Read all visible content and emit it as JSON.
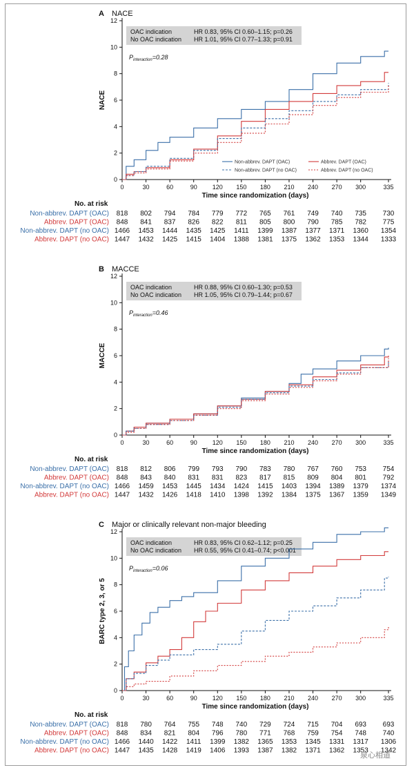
{
  "colors": {
    "blue": "#3a6fa8",
    "red": "#d23a3a"
  },
  "xlabel": "Time since randomization (days)",
  "x_ticks": [
    0,
    30,
    60,
    90,
    120,
    150,
    180,
    210,
    240,
    270,
    300,
    335
  ],
  "y_ticks": [
    0,
    2,
    4,
    6,
    8,
    10,
    12
  ],
  "risk_title": "No. at risk",
  "risk_labels": [
    "Non-abbrev. DAPT (OAC)",
    "Abbrev. DAPT (OAC)",
    "Non-abbrev. DAPT (no OAC)",
    "Abbrev. DAPT (no OAC)"
  ],
  "legend_labels": [
    "Non-abbrev. DAPT (OAC)",
    "Abbrev. DAPT (OAC)",
    "Non-abbrev. DAPT (no OAC)",
    "Abbrev. DAPT (no OAC)"
  ],
  "box_labels": [
    "OAC indication",
    "No OAC indication"
  ],
  "pint_prefix": "P",
  "pint_sub": "interaction",
  "watermark": "泉心相道",
  "panels": [
    {
      "letter": "A",
      "title": "NACE",
      "ylabel": "NACE",
      "box_stats": [
        "HR 0.83, 95% CI 0.60–1.15; p=0.26",
        "HR 1.01, 95% CI 0.77–1.33; p=0.91"
      ],
      "pint": "=0.28",
      "show_legend": true,
      "risk": [
        [
          818,
          802,
          794,
          784,
          779,
          772,
          765,
          761,
          749,
          740,
          735,
          730
        ],
        [
          848,
          841,
          837,
          826,
          822,
          811,
          805,
          800,
          790,
          785,
          782,
          775
        ],
        [
          1466,
          1453,
          1444,
          1435,
          1425,
          1411,
          1399,
          1387,
          1377,
          1371,
          1360,
          1354
        ],
        [
          1447,
          1432,
          1425,
          1415,
          1404,
          1388,
          1381,
          1375,
          1362,
          1353,
          1344,
          1333
        ]
      ],
      "chart_data": {
        "type": "line",
        "xlim": [
          0,
          335
        ],
        "ylim": [
          0,
          12
        ],
        "series": [
          {
            "name": "Non-abbrev. DAPT (OAC)",
            "x": [
              0,
              5,
              15,
              30,
              45,
              60,
              90,
              120,
              150,
              180,
              210,
              240,
              270,
              300,
              330,
              335
            ],
            "y": [
              0,
              1.0,
              1.5,
              2.2,
              2.8,
              3.2,
              3.9,
              4.6,
              5.3,
              5.9,
              6.8,
              8.0,
              8.8,
              9.3,
              9.7,
              9.7
            ]
          },
          {
            "name": "Abbrev. DAPT (OAC)",
            "x": [
              0,
              5,
              15,
              30,
              60,
              90,
              120,
              150,
              180,
              210,
              240,
              270,
              300,
              330,
              335
            ],
            "y": [
              0,
              0.4,
              0.6,
              0.9,
              1.5,
              2.3,
              3.3,
              4.4,
              5.3,
              5.9,
              6.5,
              7.1,
              7.4,
              8.1,
              8.1
            ]
          },
          {
            "name": "Non-abbrev. DAPT (no OAC)",
            "x": [
              0,
              5,
              15,
              30,
              60,
              90,
              120,
              150,
              180,
              210,
              240,
              270,
              300,
              335
            ],
            "y": [
              0,
              0.3,
              0.6,
              1.0,
              1.6,
              2.2,
              3.1,
              3.9,
              4.6,
              5.2,
              5.9,
              6.4,
              6.8,
              7.3
            ]
          },
          {
            "name": "Abbrev. DAPT (no OAC)",
            "x": [
              0,
              5,
              15,
              30,
              60,
              90,
              120,
              150,
              180,
              210,
              240,
              270,
              300,
              335
            ],
            "y": [
              0,
              0.3,
              0.5,
              0.8,
              1.4,
              2.0,
              2.8,
              3.5,
              4.2,
              4.9,
              5.6,
              6.2,
              6.6,
              7.2
            ]
          }
        ]
      }
    },
    {
      "letter": "B",
      "title": "MACCE",
      "ylabel": "MACCE",
      "box_stats": [
        "HR 0.88, 95% CI 0.60–1.30; p=0.53",
        "HR 1.05, 95% CI 0.79–1.44; p=0.67"
      ],
      "pint": "=0.46",
      "show_legend": false,
      "risk": [
        [
          818,
          812,
          806,
          799,
          793,
          790,
          783,
          780,
          767,
          760,
          753,
          754
        ],
        [
          848,
          843,
          840,
          831,
          831,
          823,
          817,
          815,
          809,
          804,
          801,
          792
        ],
        [
          1466,
          1459,
          1453,
          1445,
          1434,
          1424,
          1415,
          1403,
          1394,
          1389,
          1379,
          1374
        ],
        [
          1447,
          1432,
          1426,
          1418,
          1410,
          1398,
          1392,
          1384,
          1375,
          1367,
          1359,
          1349
        ]
      ],
      "chart_data": {
        "type": "line",
        "xlim": [
          0,
          335
        ],
        "ylim": [
          0,
          12
        ],
        "series": [
          {
            "name": "Non-abbrev. DAPT (OAC)",
            "x": [
              0,
              5,
              15,
              30,
              60,
              90,
              120,
              150,
              180,
              210,
              225,
              240,
              270,
              300,
              330,
              335
            ],
            "y": [
              0,
              0.3,
              0.6,
              0.9,
              1.2,
              1.6,
              2.2,
              2.8,
              3.3,
              3.9,
              4.6,
              5.0,
              5.6,
              6.0,
              6.5,
              6.6
            ]
          },
          {
            "name": "Abbrev. DAPT (OAC)",
            "x": [
              0,
              5,
              15,
              30,
              60,
              90,
              120,
              150,
              180,
              210,
              240,
              270,
              300,
              330,
              335
            ],
            "y": [
              0,
              0.3,
              0.6,
              0.9,
              1.2,
              1.6,
              2.2,
              2.7,
              3.3,
              3.8,
              4.4,
              4.9,
              5.3,
              5.9,
              6.0
            ]
          },
          {
            "name": "Non-abbrev. DAPT (no OAC)",
            "x": [
              0,
              5,
              15,
              30,
              60,
              90,
              120,
              150,
              180,
              210,
              240,
              270,
              300,
              335
            ],
            "y": [
              0,
              0.3,
              0.5,
              0.8,
              1.1,
              1.5,
              2.1,
              2.7,
              3.2,
              3.7,
              4.2,
              4.7,
              5.1,
              5.7
            ]
          },
          {
            "name": "Abbrev. DAPT (no OAC)",
            "x": [
              0,
              5,
              15,
              30,
              60,
              90,
              120,
              150,
              180,
              210,
              240,
              270,
              300,
              335
            ],
            "y": [
              0,
              0.2,
              0.5,
              0.8,
              1.1,
              1.5,
              2.0,
              2.6,
              3.1,
              3.6,
              4.1,
              4.6,
              5.1,
              5.8
            ]
          }
        ]
      }
    },
    {
      "letter": "C",
      "title": "Major or clinically relevant non-major bleeding",
      "ylabel": "BARC type 2, 3, or 5",
      "box_stats": [
        "HR 0.83, 95% CI 0.62–1.12; p=0.25",
        "HR 0.55, 95% CI 0.41–0.74; p<0.001"
      ],
      "pint": "=0.06",
      "show_legend": false,
      "risk": [
        [
          818,
          780,
          764,
          755,
          748,
          740,
          729,
          724,
          715,
          704,
          693,
          693
        ],
        [
          848,
          834,
          821,
          804,
          796,
          780,
          771,
          768,
          759,
          754,
          748,
          740
        ],
        [
          1466,
          1440,
          1422,
          1411,
          1399,
          1382,
          1365,
          1353,
          1345,
          1331,
          1317,
          1306
        ],
        [
          1447,
          1435,
          1428,
          1419,
          1406,
          1393,
          1387,
          1382,
          1371,
          1362,
          1353,
          1342
        ]
      ],
      "chart_data": {
        "type": "line",
        "xlim": [
          0,
          335
        ],
        "ylim": [
          0,
          12
        ],
        "series": [
          {
            "name": "Non-abbrev. DAPT (OAC)",
            "x": [
              0,
              3,
              8,
              15,
              25,
              35,
              45,
              60,
              75,
              90,
              120,
              150,
              180,
              210,
              240,
              270,
              300,
              330,
              335
            ],
            "y": [
              0,
              1.8,
              3.0,
              4.2,
              5.1,
              5.9,
              6.3,
              6.8,
              7.1,
              7.4,
              8.3,
              9.4,
              10.0,
              10.7,
              11.2,
              11.8,
              12.0,
              12.3,
              12.3
            ]
          },
          {
            "name": "Abbrev. DAPT (OAC)",
            "x": [
              0,
              5,
              15,
              30,
              45,
              60,
              75,
              90,
              105,
              120,
              150,
              180,
              210,
              240,
              270,
              300,
              330,
              335
            ],
            "y": [
              0,
              0.9,
              1.4,
              2.1,
              2.6,
              3.1,
              4.0,
              5.2,
              6.0,
              6.6,
              7.6,
              8.3,
              8.9,
              9.4,
              9.9,
              10.2,
              10.5,
              10.5
            ]
          },
          {
            "name": "Non-abbrev. DAPT (no OAC)",
            "x": [
              0,
              5,
              15,
              30,
              45,
              60,
              90,
              120,
              150,
              180,
              210,
              240,
              270,
              300,
              330,
              335
            ],
            "y": [
              0,
              0.9,
              1.3,
              1.9,
              2.3,
              2.7,
              3.1,
              3.5,
              4.5,
              5.3,
              6.0,
              6.4,
              7.0,
              7.6,
              8.5,
              8.6
            ]
          },
          {
            "name": "Abbrev. DAPT (no OAC)",
            "x": [
              0,
              5,
              15,
              30,
              60,
              90,
              120,
              150,
              180,
              210,
              240,
              270,
              300,
              330,
              335
            ],
            "y": [
              0,
              0.3,
              0.5,
              0.7,
              1.1,
              1.5,
              1.9,
              2.2,
              2.6,
              2.9,
              3.3,
              3.6,
              4.0,
              4.6,
              4.8
            ]
          }
        ]
      }
    }
  ]
}
